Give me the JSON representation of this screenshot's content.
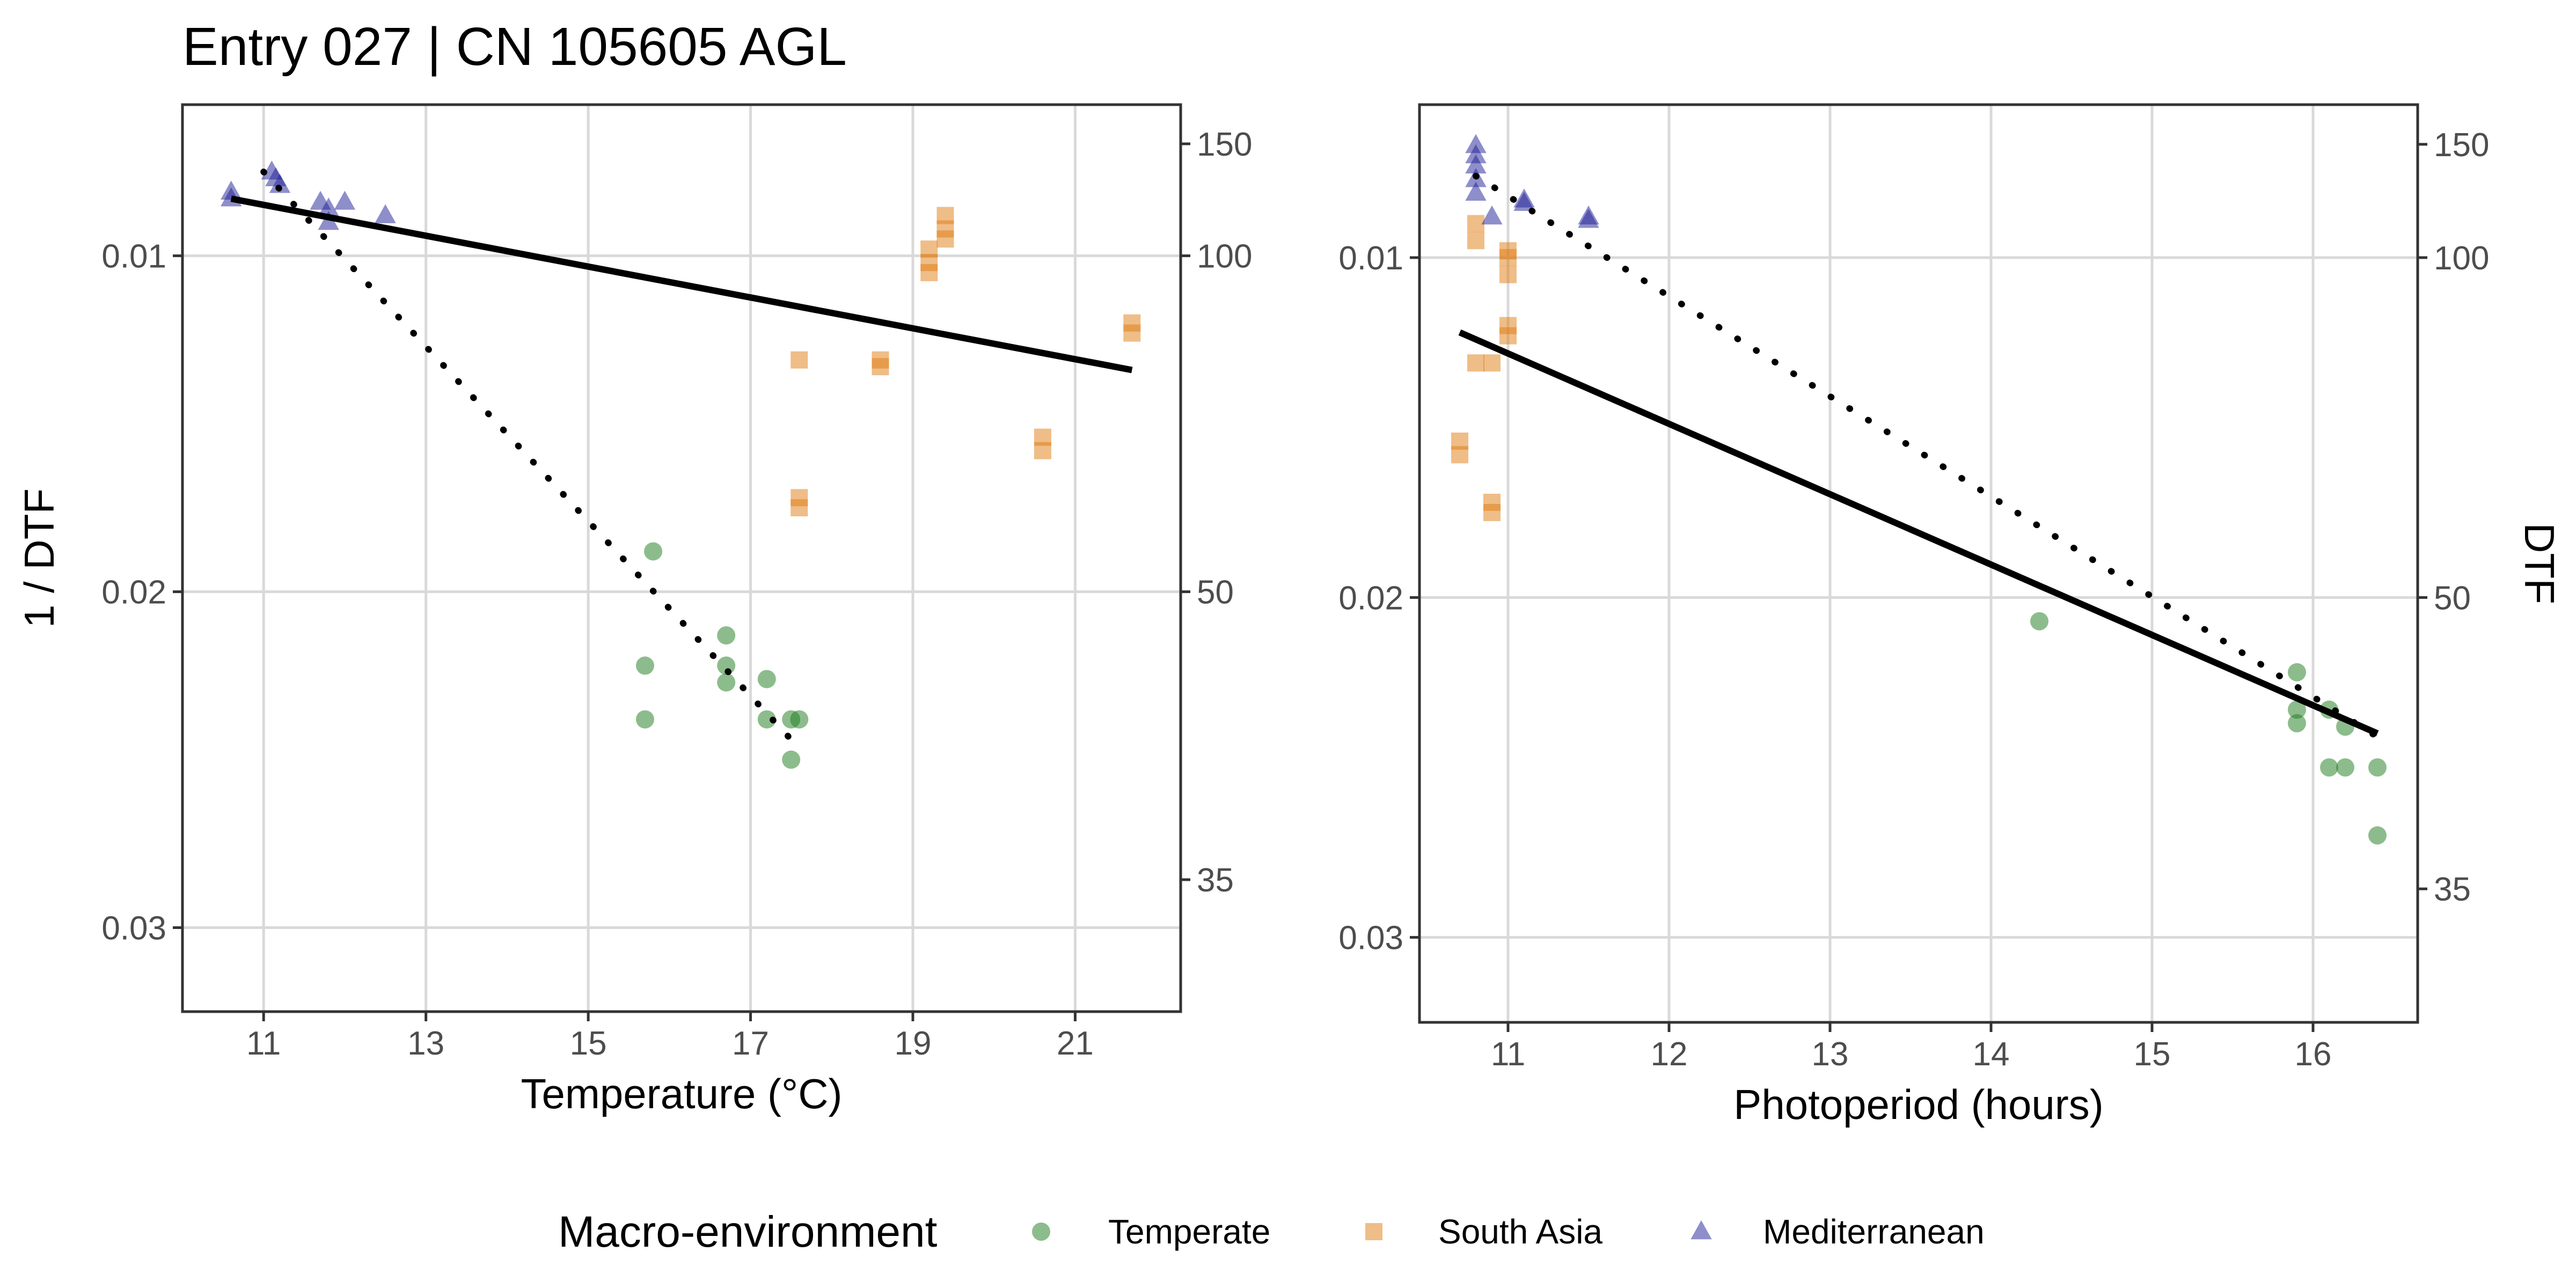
{
  "title": "Entry 027 | CN 105605 AGL",
  "colors": {
    "temperate": "#1a7a1a",
    "south_asia": "#e07b10",
    "mediterranean": "#1e1e96",
    "grid": "#d9d9d9",
    "fit": "#000000"
  },
  "legend": {
    "title": "Macro-environment",
    "items": [
      {
        "label": "Temperate",
        "shape": "circle",
        "color": "#1a7a1a"
      },
      {
        "label": "South Asia",
        "shape": "square",
        "color": "#e07b10"
      },
      {
        "label": "Mediterranean",
        "shape": "triangle",
        "color": "#1e1e96"
      }
    ]
  },
  "chart_data": [
    {
      "type": "scatter",
      "xlabel": "Temperature (°C)",
      "ylabel": "1 / DTF",
      "y2label": "",
      "xlim": [
        10.0,
        22.3
      ],
      "ylim": [
        0.0325,
        0.0055
      ],
      "y_reversed": true,
      "x_ticks": [
        11,
        13,
        15,
        17,
        19,
        21
      ],
      "y_ticks": [
        0.01,
        0.02,
        0.03
      ],
      "y_tick_labels": [
        "0.01",
        "0.02",
        "0.03"
      ],
      "y2_ticks": [
        150,
        100,
        50,
        35
      ],
      "grid": true,
      "series": [
        {
          "name": "Temperate",
          "shape": "circle",
          "points": [
            [
              15.8,
              0.0188
            ],
            [
              15.7,
              0.0222
            ],
            [
              15.7,
              0.0238
            ],
            [
              16.7,
              0.0213
            ],
            [
              16.7,
              0.0222
            ],
            [
              16.7,
              0.0227
            ],
            [
              17.2,
              0.0226
            ],
            [
              17.2,
              0.0238
            ],
            [
              17.5,
              0.0238
            ],
            [
              17.6,
              0.0238
            ],
            [
              17.5,
              0.025
            ]
          ]
        },
        {
          "name": "South Asia",
          "shape": "square",
          "points": [
            [
              17.6,
              0.0131
            ],
            [
              17.6,
              0.0172
            ],
            [
              17.6,
              0.0175
            ],
            [
              18.6,
              0.0131
            ],
            [
              18.6,
              0.0133
            ],
            [
              19.2,
              0.0098
            ],
            [
              19.2,
              0.0102
            ],
            [
              19.2,
              0.0105
            ],
            [
              19.4,
              0.0092
            ],
            [
              19.4,
              0.0088
            ],
            [
              19.4,
              0.0095
            ],
            [
              20.6,
              0.0154
            ],
            [
              20.6,
              0.0158
            ],
            [
              21.7,
              0.012
            ],
            [
              21.7,
              0.0123
            ]
          ]
        },
        {
          "name": "Mediterranean",
          "shape": "triangle",
          "points": [
            [
              10.6,
              0.0081
            ],
            [
              10.6,
              0.0083
            ],
            [
              11.1,
              0.0075
            ],
            [
              11.15,
              0.0077
            ],
            [
              11.2,
              0.0079
            ],
            [
              11.7,
              0.0084
            ],
            [
              11.8,
              0.0086
            ],
            [
              11.8,
              0.009
            ],
            [
              12.0,
              0.0084
            ],
            [
              12.5,
              0.0088
            ]
          ]
        }
      ],
      "fits": [
        {
          "style": "solid",
          "x": [
            10.6,
            21.7
          ],
          "y": [
            0.0083,
            0.0134
          ]
        },
        {
          "style": "dotted",
          "x": [
            11.0,
            17.5
          ],
          "y": [
            0.0075,
            0.0244
          ]
        }
      ]
    },
    {
      "type": "scatter",
      "xlabel": "Photoperiod (hours)",
      "ylabel": "",
      "y2label": "DTF",
      "xlim": [
        10.45,
        16.65
      ],
      "ylim": [
        0.0325,
        0.0055
      ],
      "y_reversed": true,
      "x_ticks": [
        11,
        12,
        13,
        14,
        15,
        16
      ],
      "y_ticks": [
        0.01,
        0.02,
        0.03
      ],
      "y_tick_labels": [
        "0.01",
        "0.02",
        "0.03"
      ],
      "y2_ticks": [
        150,
        100,
        50,
        35
      ],
      "grid": true,
      "series": [
        {
          "name": "Temperate",
          "shape": "circle",
          "points": [
            [
              14.3,
              0.0207
            ],
            [
              15.9,
              0.0222
            ],
            [
              15.9,
              0.0233
            ],
            [
              15.9,
              0.0237
            ],
            [
              16.1,
              0.0233
            ],
            [
              16.1,
              0.025
            ],
            [
              16.2,
              0.0238
            ],
            [
              16.2,
              0.025
            ],
            [
              16.4,
              0.025
            ],
            [
              16.4,
              0.027
            ]
          ]
        },
        {
          "name": "South Asia",
          "shape": "square",
          "points": [
            [
              10.7,
              0.0154
            ],
            [
              10.7,
              0.0158
            ],
            [
              10.8,
              0.009
            ],
            [
              10.8,
              0.0095
            ],
            [
              10.8,
              0.0131
            ],
            [
              10.9,
              0.0131
            ],
            [
              10.9,
              0.0172
            ],
            [
              10.9,
              0.0175
            ],
            [
              11.0,
              0.01
            ],
            [
              11.0,
              0.0105
            ],
            [
              11.0,
              0.0098
            ],
            [
              11.0,
              0.012
            ],
            [
              11.0,
              0.0123
            ]
          ]
        },
        {
          "name": "Mediterranean",
          "shape": "triangle",
          "points": [
            [
              10.8,
              0.0067
            ],
            [
              10.8,
              0.007
            ],
            [
              10.8,
              0.0073
            ],
            [
              10.8,
              0.0077
            ],
            [
              10.8,
              0.0081
            ],
            [
              10.9,
              0.0088
            ],
            [
              11.1,
              0.0083
            ],
            [
              11.1,
              0.0084
            ],
            [
              11.5,
              0.0088
            ],
            [
              11.5,
              0.0089
            ]
          ]
        }
      ],
      "fits": [
        {
          "style": "solid",
          "x": [
            10.7,
            16.4
          ],
          "y": [
            0.0122,
            0.024
          ]
        },
        {
          "style": "dotted",
          "x": [
            10.8,
            16.4
          ],
          "y": [
            0.0076,
            0.0241
          ]
        }
      ]
    }
  ]
}
